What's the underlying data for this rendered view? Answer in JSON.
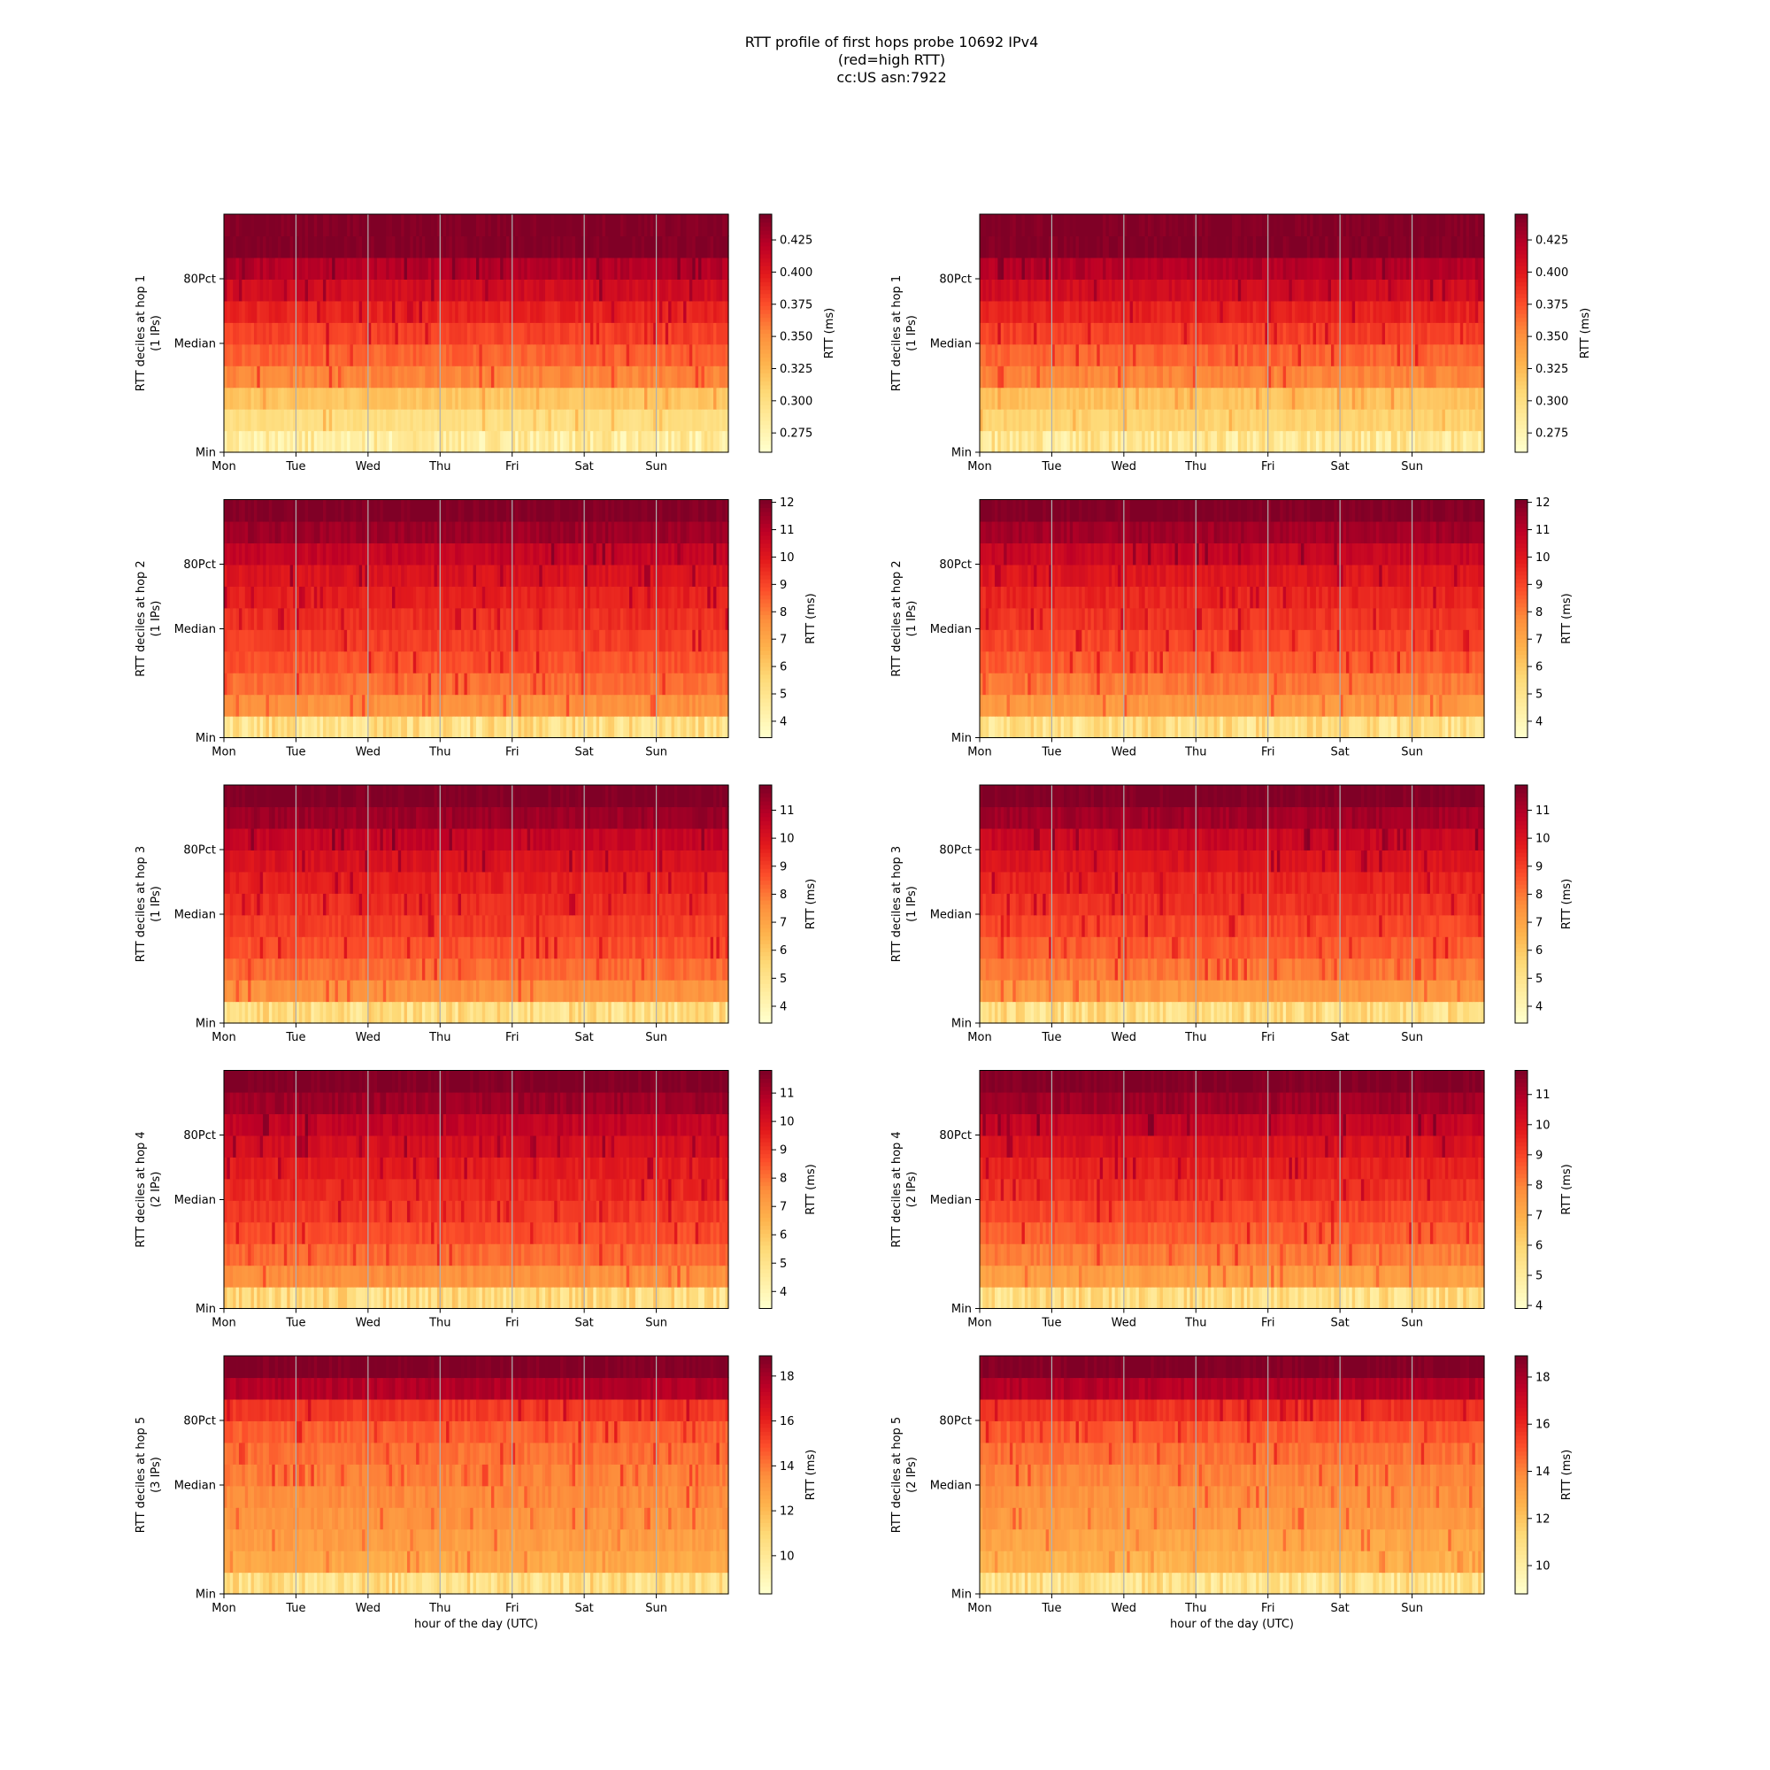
{
  "figure": {
    "title_lines": [
      "RTT profile of first hops probe 10692 IPv4",
      "(red=high RTT)",
      "cc:US asn:7922"
    ]
  },
  "chart_data": {
    "type": "heatmap",
    "x_tick_labels": [
      "Mon",
      "Tue",
      "Wed",
      "Thu",
      "Fri",
      "Sat",
      "Sun"
    ],
    "y_tick_labels": [
      "Min",
      "Median",
      "80Pct"
    ],
    "x_label": "hour of the day (UTC)",
    "colorbar_label": "RTT (ms)",
    "colormap": "YlOrRd",
    "colormap_stops": [
      "#ffffcc",
      "#ffeda0",
      "#fed976",
      "#feb24c",
      "#fd8d3c",
      "#fc4e2a",
      "#e31a1c",
      "#bd0026",
      "#800026"
    ],
    "gridline_color": "#b0b0b0",
    "n_deciles": 11,
    "n_time_bins": 168,
    "panels": [
      {
        "hop": 1,
        "ylabel": "RTT deciles at hop 1",
        "ips": "(1 IPs)",
        "column": "left",
        "cbar_range": [
          0.26,
          0.445
        ],
        "cbar_ticks": [
          "0.275",
          "0.300",
          "0.325",
          "0.350",
          "0.375",
          "0.400",
          "0.425"
        ],
        "decile_levels": [
          0.285,
          0.3,
          0.318,
          0.355,
          0.368,
          0.382,
          0.395,
          0.41,
          0.425,
          0.445,
          0.445
        ],
        "show_xlabel": false
      },
      {
        "hop": 1,
        "ylabel": "RTT deciles at hop 1",
        "ips": "(1 IPs)",
        "column": "right",
        "cbar_range": [
          0.26,
          0.445
        ],
        "cbar_ticks": [
          "0.275",
          "0.300",
          "0.325",
          "0.350",
          "0.375",
          "0.400",
          "0.425"
        ],
        "decile_levels": [
          0.29,
          0.31,
          0.32,
          0.355,
          0.368,
          0.382,
          0.395,
          0.41,
          0.425,
          0.445,
          0.445
        ],
        "show_xlabel": false
      },
      {
        "hop": 2,
        "ylabel": "RTT deciles at hop 2",
        "ips": "(1 IPs)",
        "column": "left",
        "cbar_range": [
          3.4,
          12.1
        ],
        "cbar_ticks": [
          "4",
          "5",
          "6",
          "7",
          "8",
          "9",
          "10",
          "11",
          "12"
        ],
        "decile_levels": [
          5.2,
          7.6,
          8.3,
          8.8,
          9.2,
          9.5,
          9.8,
          10.2,
          10.8,
          11.6,
          12.1
        ],
        "show_xlabel": false
      },
      {
        "hop": 2,
        "ylabel": "RTT deciles at hop 2",
        "ips": "(1 IPs)",
        "column": "right",
        "cbar_range": [
          3.4,
          12.1
        ],
        "cbar_ticks": [
          "4",
          "5",
          "6",
          "7",
          "8",
          "9",
          "10",
          "11",
          "12"
        ],
        "decile_levels": [
          5.2,
          7.4,
          8.1,
          8.6,
          9.0,
          9.4,
          9.7,
          10.1,
          10.7,
          11.5,
          12.1
        ],
        "show_xlabel": false
      },
      {
        "hop": 3,
        "ylabel": "RTT deciles at hop 3",
        "ips": "(1 IPs)",
        "column": "left",
        "cbar_range": [
          3.4,
          11.9
        ],
        "cbar_ticks": [
          "4",
          "5",
          "6",
          "7",
          "8",
          "9",
          "10",
          "11"
        ],
        "decile_levels": [
          5.2,
          7.5,
          8.2,
          8.7,
          9.1,
          9.4,
          9.7,
          10.1,
          10.6,
          11.4,
          11.9
        ],
        "show_xlabel": false
      },
      {
        "hop": 3,
        "ylabel": "RTT deciles at hop 3",
        "ips": "(1 IPs)",
        "column": "right",
        "cbar_range": [
          3.4,
          11.9
        ],
        "cbar_ticks": [
          "4",
          "5",
          "6",
          "7",
          "8",
          "9",
          "10",
          "11"
        ],
        "decile_levels": [
          5.2,
          7.3,
          8.0,
          8.5,
          8.9,
          9.3,
          9.6,
          10.0,
          10.5,
          11.3,
          11.9
        ],
        "show_xlabel": false
      },
      {
        "hop": 4,
        "ylabel": "RTT deciles at hop 4",
        "ips": "(2 IPs)",
        "column": "left",
        "cbar_range": [
          3.4,
          11.8
        ],
        "cbar_ticks": [
          "4",
          "5",
          "6",
          "7",
          "8",
          "9",
          "10",
          "11"
        ],
        "decile_levels": [
          5.3,
          7.5,
          8.2,
          8.7,
          9.1,
          9.4,
          9.7,
          10.1,
          10.6,
          11.3,
          11.8
        ],
        "show_xlabel": false
      },
      {
        "hop": 4,
        "ylabel": "RTT deciles at hop 4",
        "ips": "(2 IPs)",
        "column": "right",
        "cbar_range": [
          3.9,
          11.8
        ],
        "cbar_ticks": [
          "4",
          "5",
          "6",
          "7",
          "8",
          "9",
          "10",
          "11"
        ],
        "decile_levels": [
          5.6,
          7.4,
          8.1,
          8.6,
          9.0,
          9.4,
          9.7,
          10.1,
          10.6,
          11.3,
          11.8
        ],
        "show_xlabel": false
      },
      {
        "hop": 5,
        "ylabel": "RTT deciles at hop 5",
        "ips": "(3 IPs)",
        "column": "left",
        "cbar_range": [
          8.3,
          18.9
        ],
        "cbar_ticks": [
          "10",
          "12",
          "14",
          "16",
          "18"
        ],
        "decile_levels": [
          10.6,
          12.6,
          13.0,
          13.3,
          13.6,
          13.9,
          14.2,
          14.6,
          15.5,
          17.8,
          18.9
        ],
        "show_xlabel": true
      },
      {
        "hop": 5,
        "ylabel": "RTT deciles at hop 5",
        "ips": "(2 IPs)",
        "column": "right",
        "cbar_range": [
          8.8,
          18.9
        ],
        "cbar_ticks": [
          "10",
          "12",
          "14",
          "16",
          "18"
        ],
        "decile_levels": [
          10.8,
          12.6,
          13.0,
          13.4,
          13.7,
          14.0,
          14.4,
          14.9,
          15.8,
          17.8,
          18.9
        ],
        "show_xlabel": true
      }
    ]
  }
}
